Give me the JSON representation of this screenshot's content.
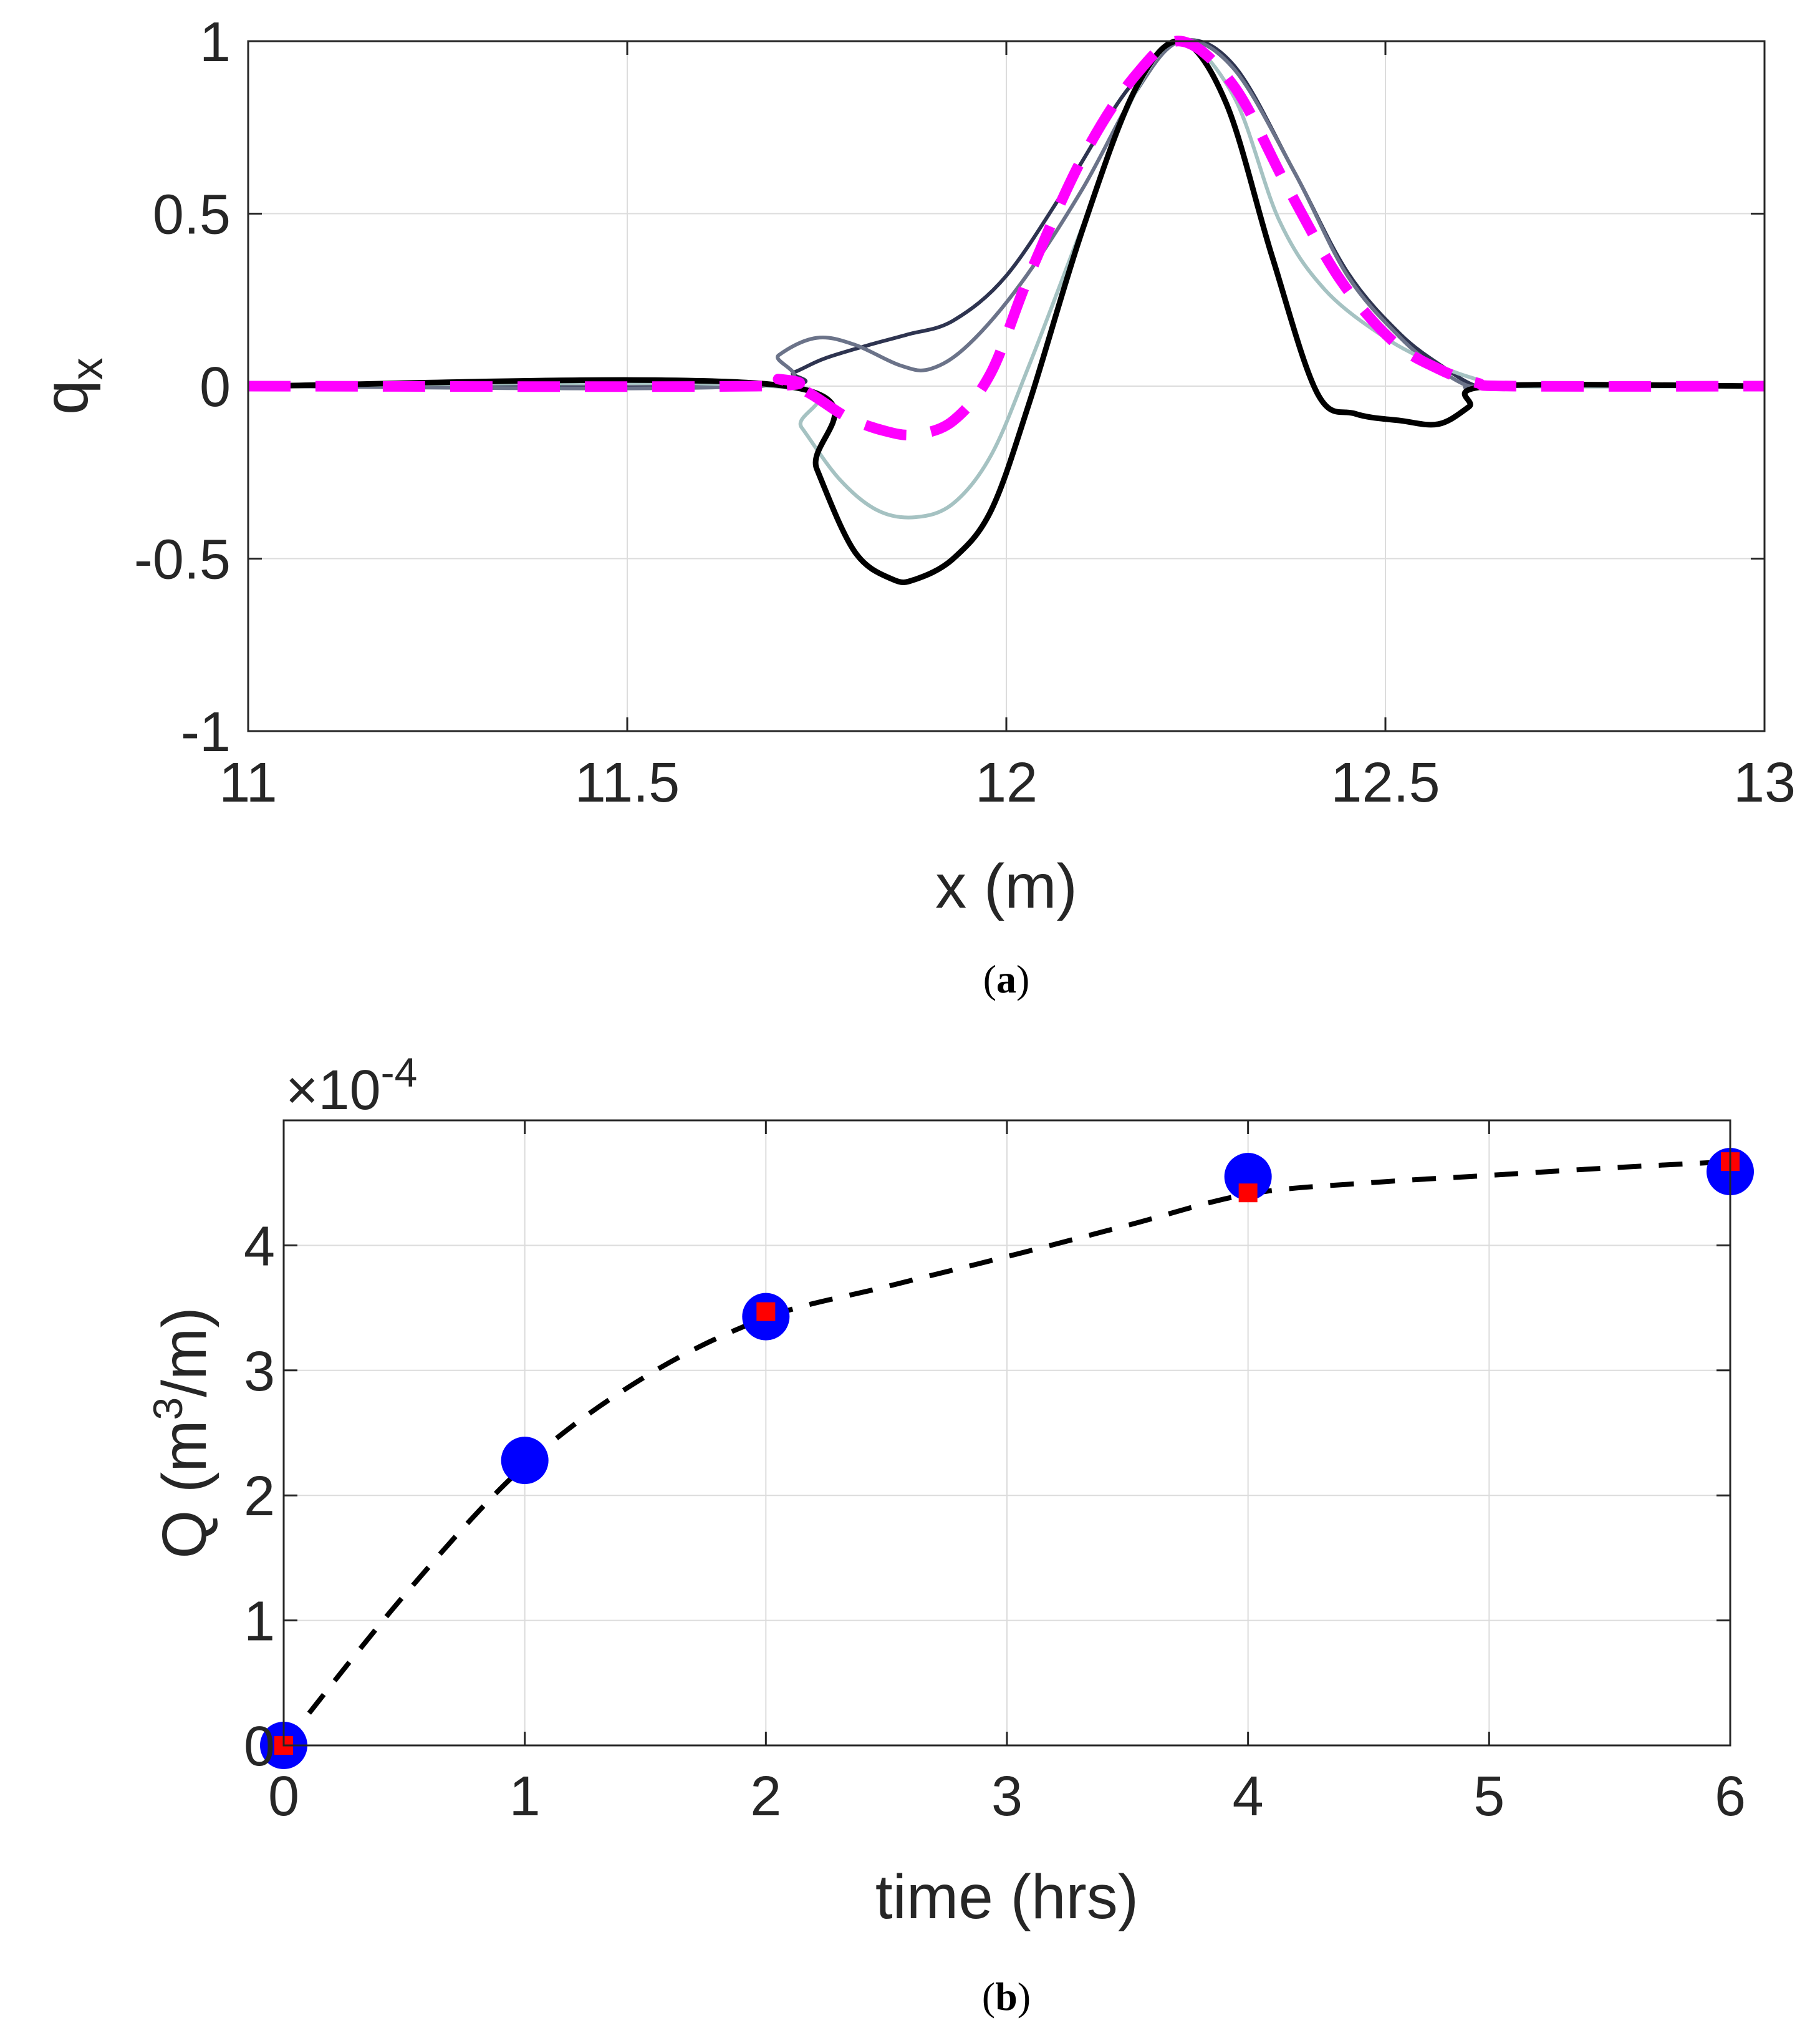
{
  "chart_data": [
    {
      "type": "line",
      "panel": "a",
      "caption": "a",
      "xlabel": "x (m)",
      "ylabel": "q",
      "ylabel_subscript": "x",
      "xlim": [
        11,
        13
      ],
      "ylim": [
        -1,
        1
      ],
      "xticks": [
        11,
        11.5,
        12,
        12.5,
        13
      ],
      "xtick_labels": [
        "11",
        "11.5",
        "12",
        "12.5",
        "13"
      ],
      "yticks": [
        -1,
        -0.5,
        0,
        0.5,
        1
      ],
      "ytick_labels": [
        "-1",
        "-0.5",
        "0",
        "0.5",
        "1"
      ],
      "grid": true,
      "series": [
        {
          "name": "profile-darkest-navy",
          "color": "#2e3450",
          "style": "solid",
          "width": "thin",
          "x": [
            11,
            11.67,
            11.72,
            11.76,
            11.82,
            11.87,
            11.93,
            12.0,
            12.08,
            12.16,
            12.23,
            12.3,
            12.38,
            12.45,
            12.52,
            12.58,
            12.62,
            12.65,
            13
          ],
          "y": [
            0,
            0,
            0.04,
            0.08,
            0.12,
            0.15,
            0.19,
            0.32,
            0.58,
            0.86,
            1.0,
            0.93,
            0.62,
            0.33,
            0.15,
            0.05,
            0.0,
            0,
            0
          ]
        },
        {
          "name": "profile-slate",
          "color": "#6b7389",
          "style": "solid",
          "width": "thin",
          "x": [
            11,
            11.66,
            11.7,
            11.75,
            11.8,
            11.86,
            11.9,
            11.95,
            12.02,
            12.1,
            12.17,
            12.23,
            12.3,
            12.38,
            12.45,
            12.52,
            12.57,
            12.61,
            12.64,
            13
          ],
          "y": [
            0,
            0,
            0.09,
            0.14,
            0.12,
            0.06,
            0.05,
            0.12,
            0.3,
            0.57,
            0.85,
            1.0,
            0.92,
            0.62,
            0.32,
            0.14,
            0.05,
            0.0,
            0,
            0
          ]
        },
        {
          "name": "profile-light-teal",
          "color": "#a5c2c2",
          "style": "solid",
          "width": "thin",
          "x": [
            11,
            11.69,
            11.73,
            11.78,
            11.83,
            11.88,
            11.93,
            11.98,
            12.03,
            12.1,
            12.17,
            12.23,
            12.3,
            12.36,
            12.42,
            12.5,
            12.57,
            12.62,
            12.66,
            13
          ],
          "y": [
            0,
            0,
            -0.12,
            -0.27,
            -0.36,
            -0.38,
            -0.34,
            -0.2,
            0.06,
            0.46,
            0.85,
            1.0,
            0.84,
            0.48,
            0.28,
            0.14,
            0.06,
            0.02,
            0,
            0
          ]
        },
        {
          "name": "profile-black",
          "color": "#000000",
          "style": "solid",
          "width": "thick",
          "x": [
            11,
            11.71,
            11.75,
            11.8,
            11.85,
            11.88,
            11.93,
            11.98,
            12.03,
            12.1,
            12.17,
            12.23,
            12.29,
            12.35,
            12.41,
            12.46,
            12.52,
            12.57,
            12.61,
            12.64,
            13
          ],
          "y": [
            0,
            0,
            -0.24,
            -0.48,
            -0.56,
            -0.56,
            -0.5,
            -0.36,
            -0.05,
            0.45,
            0.86,
            1.0,
            0.82,
            0.38,
            -0.02,
            -0.08,
            -0.1,
            -0.11,
            -0.06,
            0,
            0
          ]
        },
        {
          "name": "profile-magenta-dashed",
          "color": "#ff00ff",
          "style": "dashed",
          "width": "thick",
          "x": [
            11,
            11.67,
            11.7,
            11.74,
            11.79,
            11.84,
            11.88,
            11.93,
            11.98,
            12.03,
            12.1,
            12.17,
            12.23,
            12.3,
            12.37,
            12.44,
            12.51,
            12.57,
            12.62,
            12.67,
            13
          ],
          "y": [
            0,
            0,
            0.02,
            -0.02,
            -0.09,
            -0.13,
            -0.14,
            -0.1,
            0.04,
            0.32,
            0.66,
            0.9,
            1.0,
            0.87,
            0.58,
            0.31,
            0.13,
            0.05,
            0.01,
            0,
            0
          ]
        }
      ]
    },
    {
      "type": "scatter",
      "panel": "b",
      "caption": "b",
      "xlabel": "time (hrs)",
      "ylabel": "Q (m",
      "ylabel_superscript": "3",
      "ylabel_suffix": "/m)",
      "exponent_prefix": "×10",
      "exponent_power": "-4",
      "xlim": [
        0,
        6
      ],
      "ylim": [
        0,
        5
      ],
      "xticks": [
        0,
        1,
        2,
        3,
        4,
        5,
        6
      ],
      "xtick_labels": [
        "0",
        "1",
        "2",
        "3",
        "4",
        "5",
        "6"
      ],
      "yticks": [
        0,
        1,
        2,
        3,
        4
      ],
      "ytick_labels": [
        "0",
        "1",
        "2",
        "3",
        "4"
      ],
      "grid": true,
      "series": [
        {
          "name": "blue-circles",
          "color": "#0000ff",
          "marker": "circle",
          "x": [
            0,
            1,
            2,
            4,
            6
          ],
          "y": [
            0.0,
            2.28,
            3.43,
            4.55,
            4.59
          ]
        },
        {
          "name": "red-squares",
          "color": "#ff0000",
          "marker": "square",
          "x": [
            0,
            2,
            4,
            6
          ],
          "y": [
            0.0,
            3.47,
            4.42,
            4.67
          ]
        },
        {
          "name": "black-dashed-fit",
          "color": "#000000",
          "style": "dashed",
          "x": [
            0,
            0.5,
            1,
            1.5,
            2,
            2.5,
            3,
            3.5,
            4,
            4.5,
            5,
            5.5,
            6
          ],
          "y": [
            0.0,
            1.2,
            2.24,
            2.95,
            3.42,
            3.67,
            3.91,
            4.16,
            4.41,
            4.5,
            4.56,
            4.62,
            4.67
          ]
        }
      ]
    }
  ]
}
